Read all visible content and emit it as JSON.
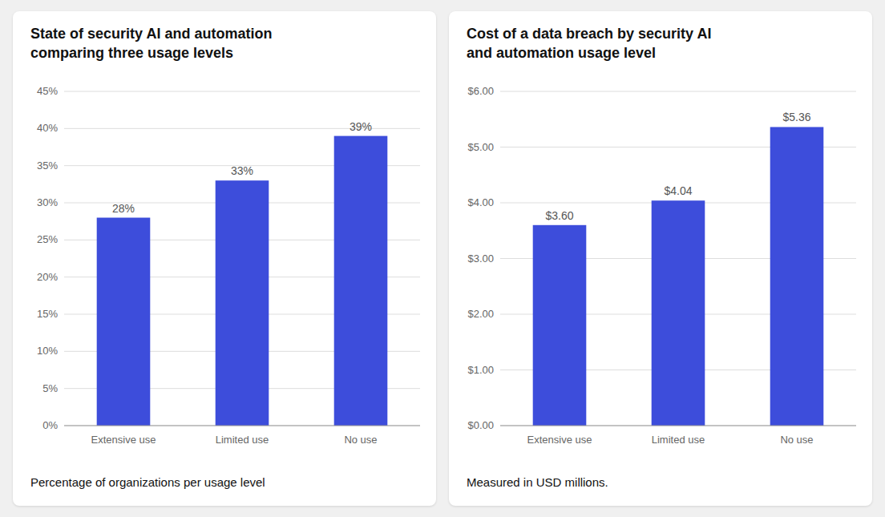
{
  "chart_data": [
    {
      "type": "bar",
      "title": "State of security AI and automation\ncomparing three usage levels",
      "categories": [
        "Extensive use",
        "Limited use",
        "No use"
      ],
      "values": [
        28,
        33,
        39
      ],
      "value_labels": [
        "28%",
        "33%",
        "39%"
      ],
      "data_labels": true,
      "color": "#3d4ddb",
      "ylim": [
        0,
        45
      ],
      "yticks": [
        {
          "value": 0,
          "label": "0%"
        },
        {
          "value": 5,
          "label": "5%"
        },
        {
          "value": 10,
          "label": "10%"
        },
        {
          "value": 15,
          "label": "15%"
        },
        {
          "value": 20,
          "label": "20%"
        },
        {
          "value": 25,
          "label": "25%"
        },
        {
          "value": 30,
          "label": "30%"
        },
        {
          "value": 35,
          "label": "35%"
        },
        {
          "value": 40,
          "label": "40%"
        },
        {
          "value": 45,
          "label": "45%"
        }
      ],
      "grid": true,
      "footnote": "Percentage of organizations per usage level"
    },
    {
      "type": "bar",
      "title": "Cost of a data breach by security AI\nand automation usage level",
      "categories": [
        "Extensive use",
        "Limited use",
        "No use"
      ],
      "values": [
        3.6,
        4.04,
        5.36
      ],
      "value_labels": [
        "$3.60",
        "$4.04",
        "$5.36"
      ],
      "data_labels": true,
      "color": "#3d4ddb",
      "ylim": [
        0,
        6.0
      ],
      "yticks": [
        {
          "value": 0,
          "label": "$0.00"
        },
        {
          "value": 1.0,
          "label": "$1.00"
        },
        {
          "value": 2.0,
          "label": "$2.00"
        },
        {
          "value": 3.0,
          "label": "$3.00"
        },
        {
          "value": 4.0,
          "label": "$4.00"
        },
        {
          "value": 5.0,
          "label": "$5.00"
        },
        {
          "value": 6.0,
          "label": "$6.00"
        }
      ],
      "grid": true,
      "footnote": "Measured in USD millions."
    }
  ]
}
